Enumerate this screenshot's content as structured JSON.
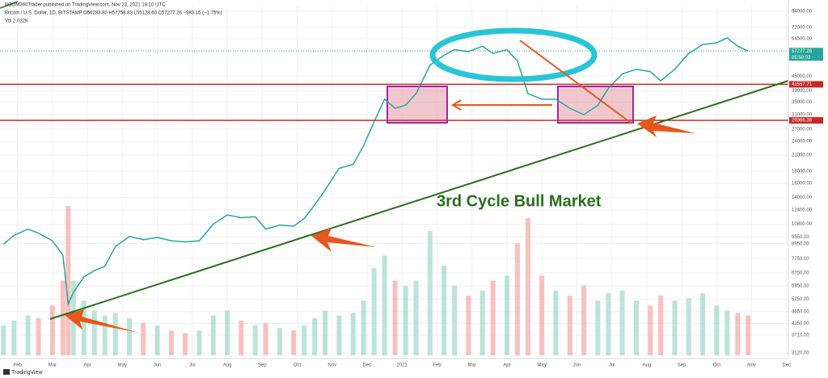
{
  "header": {
    "publisher": "BOOM360Trader published on TradingView.com, Nov 23, 2021 18:10 UTC",
    "symbol": "Bitcoin / U.S. Dollar, 1D, BITSTAMP  O56283.80 H57758.83 L55128.60 C57277.26 −983.15 (−1.75%)",
    "volume": "Vol 2.022K"
  },
  "footer": {
    "brand": "TradingView"
  },
  "chart_data": {
    "type": "line",
    "log_y": true,
    "grid": true,
    "color": "#26a69a",
    "annotation": "3rd Cycle Bull Market",
    "x": [
      0.6,
      0.9,
      1.3,
      1.6,
      2.0,
      2.3,
      2.45,
      2.6,
      2.9,
      3.2,
      3.5,
      3.8,
      4.2,
      4.6,
      5.0,
      5.4,
      5.8,
      6.2,
      6.6,
      7.0,
      7.4,
      7.8,
      8.1,
      8.5,
      8.9,
      9.2,
      9.5,
      9.8,
      10.2,
      10.6,
      10.9,
      11.2,
      11.5,
      11.8,
      12.1,
      12.4,
      12.8,
      13.2,
      13.5,
      13.9,
      14.3,
      14.6,
      15.0,
      15.3,
      15.6,
      16.0,
      16.4,
      16.8,
      17.2,
      17.6,
      17.9,
      18.3,
      18.7,
      19.1,
      19.4,
      19.8,
      20.2,
      20.6,
      21.0,
      21.3,
      21.6,
      21.9
    ],
    "series": [
      {
        "name": "Price",
        "color": "#26a69a",
        "values": [
          8900,
          9700,
          10300,
          9900,
          9200,
          8000,
          5000,
          5600,
          6500,
          6900,
          7200,
          8700,
          9600,
          9300,
          9500,
          9200,
          9100,
          9200,
          10800,
          11800,
          11500,
          11600,
          10300,
          10700,
          10600,
          11400,
          13000,
          15000,
          18500,
          19200,
          23000,
          29000,
          36000,
          33000,
          34000,
          38000,
          50000,
          55000,
          58000,
          57000,
          60000,
          56000,
          58000,
          52000,
          38000,
          36000,
          36000,
          33000,
          31000,
          34000,
          40000,
          46000,
          48000,
          47000,
          43000,
          48000,
          56000,
          61000,
          62000,
          65000,
          60000,
          57277
        ]
      },
      {
        "name": "Volume",
        "axis": "y2",
        "color": "#f4a6a6",
        "values": [
          1.2,
          1.4,
          1.6,
          1.5,
          2,
          3,
          6,
          3,
          2.2,
          1.8,
          1.6,
          1.7,
          1.5,
          1.3,
          1.2,
          1,
          0.9,
          1,
          1.6,
          1.8,
          1.4,
          1.2,
          1.3,
          1.1,
          1,
          1.2,
          1.5,
          1.8,
          1.6,
          1.7,
          2.2,
          3.5,
          4,
          3,
          2.8,
          3,
          5,
          3.6,
          2.8,
          2.4,
          2.6,
          3,
          3.2,
          4.5,
          5.5,
          3.2,
          2.6,
          2.4,
          2.8,
          2.2,
          2.5,
          2.6,
          2.2,
          2,
          2.4,
          2.2,
          2.3,
          2.5,
          2,
          1.8,
          1.7,
          1.6
        ]
      }
    ],
    "y2lim": [
      0,
      14
    ],
    "xlim": [
      0.5,
      23.05
    ],
    "xticks": [
      {
        "value": 1,
        "label": "Feb"
      },
      {
        "value": 2,
        "label": "Mar"
      },
      {
        "value": 3,
        "label": "Apr"
      },
      {
        "value": 4,
        "label": "May"
      },
      {
        "value": 5,
        "label": "Jun"
      },
      {
        "value": 6,
        "label": "Jul"
      },
      {
        "value": 7,
        "label": "Aug"
      },
      {
        "value": 8,
        "label": "Sep"
      },
      {
        "value": 9,
        "label": "Oct"
      },
      {
        "value": 10,
        "label": "Nov"
      },
      {
        "value": 11,
        "label": "Dec"
      },
      {
        "value": 12,
        "label": "2021"
      },
      {
        "value": 13,
        "label": "Feb"
      },
      {
        "value": 14,
        "label": "Mar"
      },
      {
        "value": 15,
        "label": "Apr"
      },
      {
        "value": 16,
        "label": "May"
      },
      {
        "value": 17,
        "label": "Jun"
      },
      {
        "value": 18,
        "label": "Jul"
      },
      {
        "value": 19,
        "label": "Aug"
      },
      {
        "value": 20,
        "label": "Sep"
      },
      {
        "value": 21,
        "label": "Oct"
      },
      {
        "value": 22,
        "label": "Nov"
      },
      {
        "value": 23,
        "label": "Dec"
      }
    ],
    "ylim": [
      3050,
      88000
    ],
    "yticks": [
      {
        "value": 84000,
        "label": "84000.00"
      },
      {
        "value": 72000,
        "label": "72000.00"
      },
      {
        "value": 64500,
        "label": "64500.00"
      },
      {
        "value": 45000,
        "label": "45000.00"
      },
      {
        "value": 39000,
        "label": "39000.00"
      },
      {
        "value": 35000,
        "label": "35000.00"
      },
      {
        "value": 31000,
        "label": "31000.00"
      },
      {
        "value": 27000,
        "label": "27000.00"
      },
      {
        "value": 24000,
        "label": "24000.00"
      },
      {
        "value": 21000,
        "label": "21000.00"
      },
      {
        "value": 18000,
        "label": "18000.00"
      },
      {
        "value": 16000,
        "label": "16000.00"
      },
      {
        "value": 14000,
        "label": "14000.00"
      },
      {
        "value": 12400,
        "label": "12400.00"
      },
      {
        "value": 10800,
        "label": "10800.00"
      },
      {
        "value": 9550,
        "label": "9550.00"
      },
      {
        "value": 8950,
        "label": "8950.00"
      },
      {
        "value": 7750,
        "label": "7750.00"
      },
      {
        "value": 6750,
        "label": "6750.00"
      },
      {
        "value": 5950,
        "label": "5950.00"
      },
      {
        "value": 5250,
        "label": "5250.00"
      },
      {
        "value": 4650,
        "label": "4650.00"
      },
      {
        "value": 4150,
        "label": "4150.00"
      },
      {
        "value": 3710,
        "label": "3710.00"
      },
      {
        "value": 3120,
        "label": "3120.00"
      }
    ],
    "levels": [
      {
        "value": 41557.71,
        "color": "#c62828"
      },
      {
        "value": 29366.38,
        "color": "#c62828"
      }
    ],
    "last_price": {
      "value": 57277.26,
      "countdown": "05:50:02",
      "color": "#26a69a"
    }
  }
}
